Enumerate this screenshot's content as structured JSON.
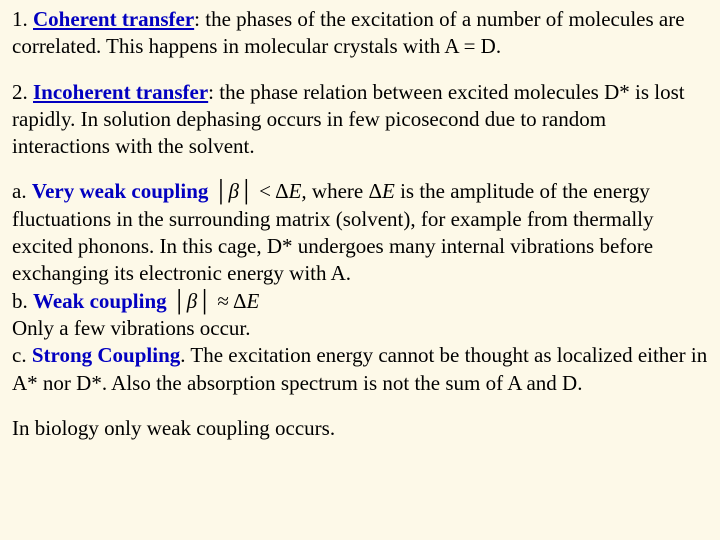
{
  "section1": {
    "number": "1. ",
    "title": "Coherent transfer",
    "text": ": the phases of the excitation of a number of molecules are correlated. This happens in molecular crystals with A = D."
  },
  "section2": {
    "number": "2. ",
    "title": "Incoherent transfer",
    "text": ": the phase relation between excited molecules D* is lost rapidly. In solution dephasing occurs in few picosecond due to random interactions with the solvent."
  },
  "subs": {
    "a": {
      "prefix": "a. ",
      "title": "Very weak coupling",
      "cond1": " │",
      "beta": "β",
      "cond2": "│ < Δ",
      "Eit": "E,",
      "cond3": " where Δ",
      "Eit2": "E",
      "rest": " is the amplitude of the energy fluctuations in the surrounding matrix (solvent), for example from thermally excited phonons. In this cage, D* undergoes many internal vibrations before exchanging its electronic energy with A."
    },
    "b": {
      "prefix": "b. ",
      "title": "Weak coupling",
      "cond1": " │",
      "beta": "β",
      "cond2": "│ ≈ Δ",
      "Eit": "E",
      "rest": "Only a few vibrations occur."
    },
    "c": {
      "prefix": "c. ",
      "title": "Strong Coupling",
      "rest": ". The excitation energy cannot be thought as localized either in A* nor D*. Also the absorption spectrum is not the sum of A and D."
    }
  },
  "closing": "In biology only weak coupling occurs."
}
